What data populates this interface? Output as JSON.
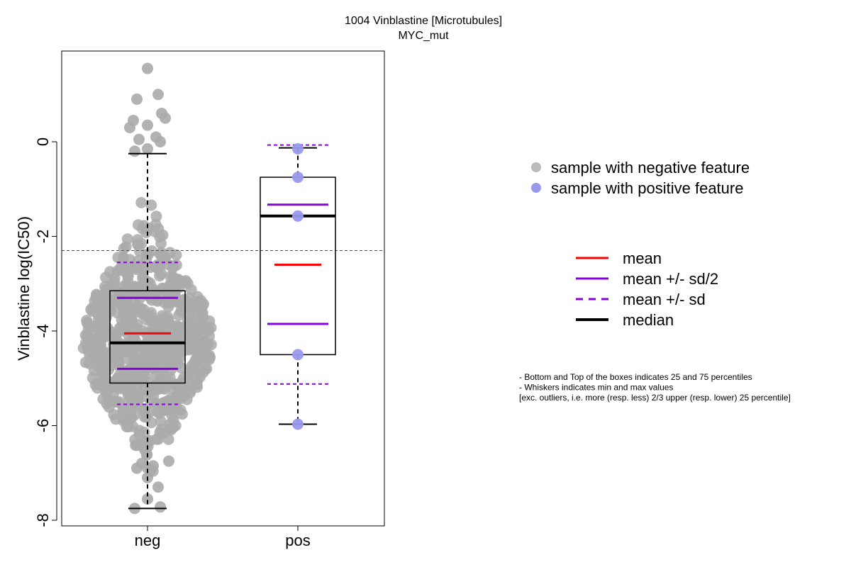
{
  "chart_data": {
    "type": "box",
    "title": "1004 Vinblastine [Microtubules]",
    "subtitle": "MYC_mut",
    "ylabel": "Vinblastine log(IC50)",
    "xlabel": "",
    "ylim": [
      -8.05,
      1.95
    ],
    "y_ticks": [
      0,
      -2,
      -4,
      -6,
      -8
    ],
    "categories": [
      "neg",
      "pos"
    ],
    "reference_line_y": -2.3,
    "groups": [
      {
        "name": "neg",
        "color": "#aaaaaa",
        "whisker_min": -7.75,
        "q1": -5.1,
        "median": -4.25,
        "q3": -3.15,
        "whisker_max": -0.25,
        "mean": -4.05,
        "mean_minus_half_sd": -4.8,
        "mean_plus_half_sd": -3.3,
        "mean_minus_sd": -5.55,
        "mean_plus_sd": -2.55,
        "points_visible": [
          1.55,
          1.0,
          0.9,
          0.6,
          0.45,
          0.5,
          0.35,
          0.3,
          0.1,
          0.05,
          0.0,
          -0.15,
          -0.2,
          -7.75,
          -7.72,
          -7.55,
          -7.3,
          -7.1,
          -6.9,
          -6.85,
          -6.8,
          -6.75
        ]
      },
      {
        "name": "pos",
        "color": "#9999ee",
        "whisker_min": -5.97,
        "q1": -4.5,
        "median": -1.57,
        "q3": -0.75,
        "whisker_max": -0.13,
        "mean": -2.6,
        "mean_minus_half_sd": -3.85,
        "mean_plus_half_sd": -1.33,
        "mean_minus_sd": -5.12,
        "mean_plus_sd": -0.07,
        "points": [
          -0.15,
          -0.75,
          -1.57,
          -4.5,
          -5.97
        ]
      }
    ],
    "legend_samples": [
      {
        "label": "sample with negative feature",
        "color": "#bbbbbb"
      },
      {
        "label": "sample with positive feature",
        "color": "#9999ee"
      }
    ],
    "legend_stats": [
      {
        "label": "mean",
        "color": "#ff0000",
        "style": "solid"
      },
      {
        "label": "mean +/- sd/2",
        "color": "#8800dd",
        "style": "solid"
      },
      {
        "label": "mean +/- sd",
        "color": "#8800dd",
        "style": "dashed"
      },
      {
        "label": "median",
        "color": "#000000",
        "style": "thick"
      }
    ],
    "notes": [
      "- Bottom and Top of the boxes indicates 25 and 75 percentiles",
      "- Whiskers indicates min and max values",
      "[exc. outliers, i.e. more (resp. less) 2/3 upper (resp. lower) 25 percentile]"
    ]
  }
}
